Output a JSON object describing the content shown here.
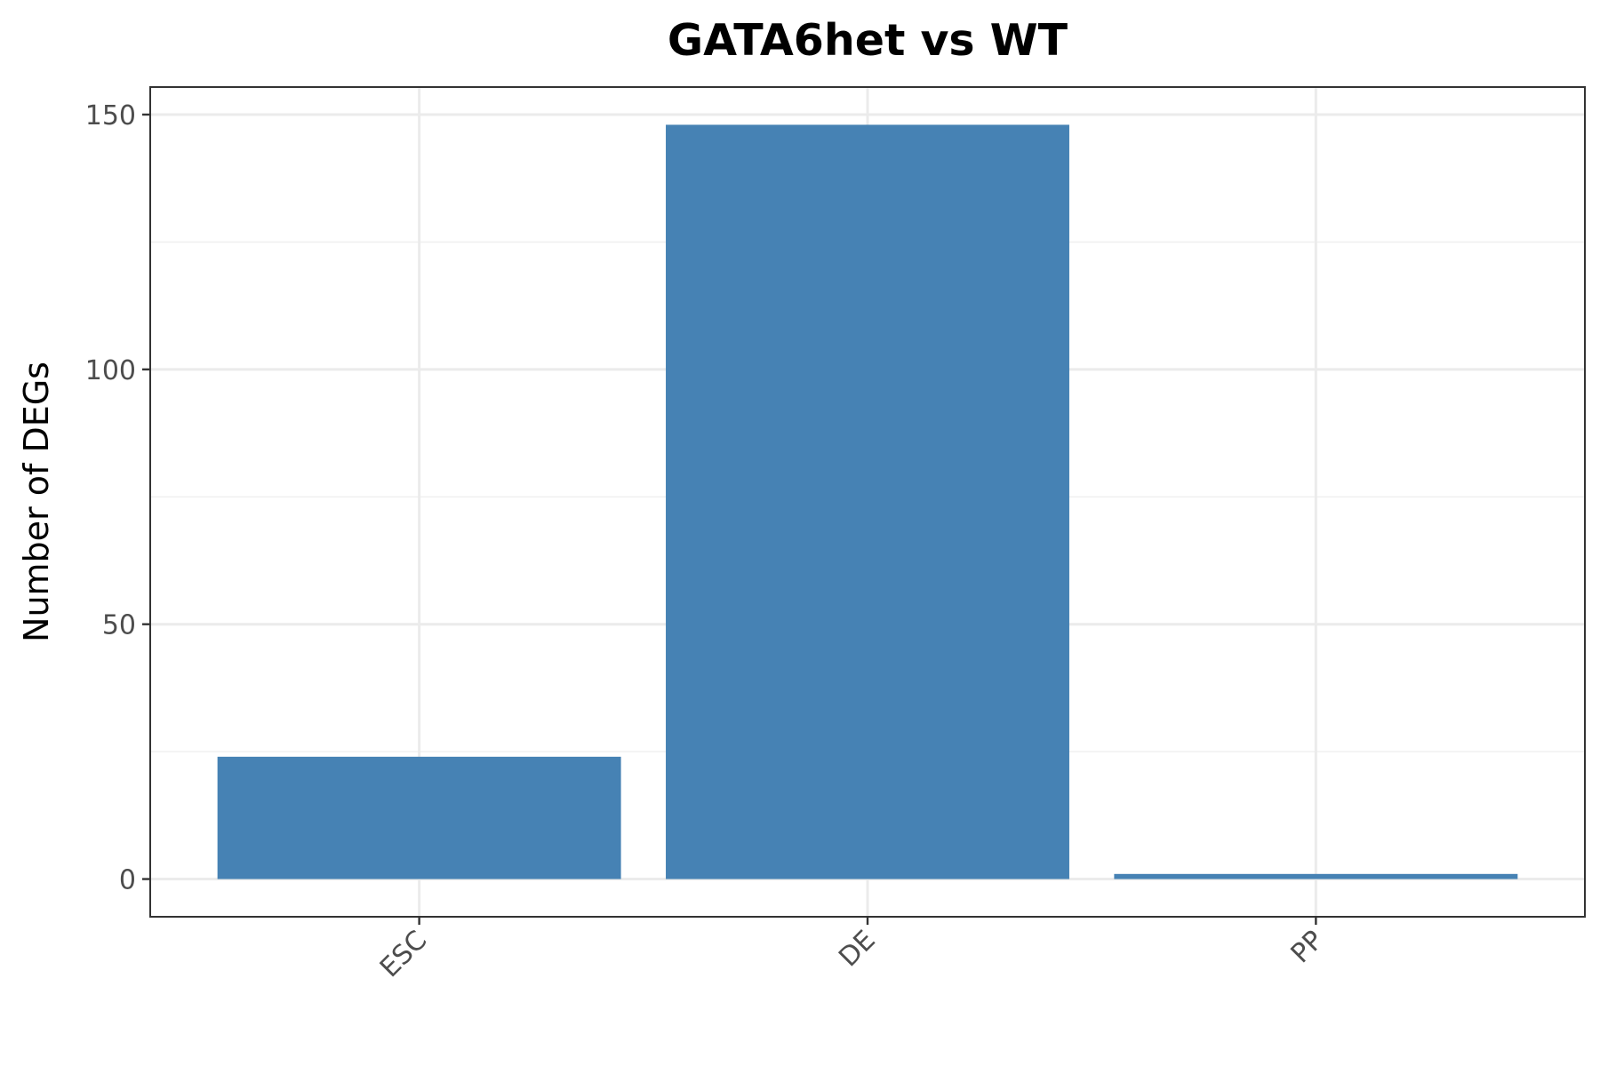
{
  "chart_data": {
    "type": "bar",
    "title": "GATA6het vs WT",
    "xlabel": "",
    "ylabel": "Number of DEGs",
    "categories": [
      "ESC",
      "DE",
      "PP"
    ],
    "values": [
      24,
      148,
      1
    ],
    "ylim": [
      -7.4,
      155.4
    ],
    "yticks": [
      0,
      50,
      100,
      150
    ],
    "ytick_labels": [
      "0",
      "50",
      "100",
      "150"
    ],
    "yticks_minor": [
      25,
      75,
      125
    ],
    "grid": true,
    "legend": "none",
    "bar_color": "#4682b4",
    "x_tick_rotation": -45
  }
}
